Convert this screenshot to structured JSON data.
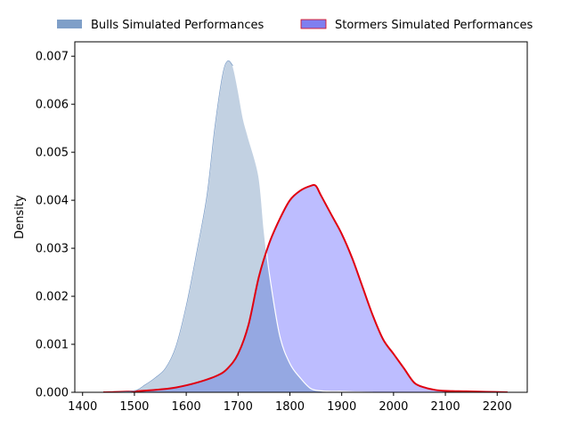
{
  "chart_data": {
    "type": "area",
    "title": "",
    "xlabel": "",
    "ylabel": "Density",
    "xlim": [
      1385,
      2258
    ],
    "ylim": [
      0,
      0.0073
    ],
    "xticks": [
      1400,
      1500,
      1600,
      1700,
      1800,
      1900,
      2000,
      2100,
      2200
    ],
    "yticks": [
      0.0,
      0.001,
      0.002,
      0.003,
      0.004,
      0.005,
      0.006,
      0.007
    ],
    "ytick_labels": [
      "0.000",
      "0.001",
      "0.002",
      "0.003",
      "0.004",
      "0.005",
      "0.006",
      "0.007"
    ],
    "legend_position": "top",
    "grid": false,
    "series": [
      {
        "name": "Bulls Simulated Performances",
        "fill": "#c2d1e2",
        "legend_color": "#7f9fc8",
        "line": "#ffffff",
        "x": [
          1460,
          1500,
          1520,
          1540,
          1560,
          1580,
          1600,
          1620,
          1640,
          1655,
          1670,
          1680,
          1690,
          1700,
          1710,
          1720,
          1740,
          1750,
          1760,
          1780,
          1800,
          1820,
          1840,
          1860,
          1880,
          1900,
          1920,
          1940,
          1960
        ],
        "y": [
          0.0,
          3e-05,
          0.00015,
          0.0003,
          0.0005,
          0.00095,
          0.0018,
          0.0029,
          0.0041,
          0.0055,
          0.0066,
          0.0069,
          0.0068,
          0.0063,
          0.0057,
          0.0053,
          0.0045,
          0.0034,
          0.0025,
          0.0012,
          0.0006,
          0.0003,
          8e-05,
          3e-05,
          2e-05,
          2e-05,
          1e-05,
          5e-06,
          0.0
        ]
      },
      {
        "name": "Stormers Simulated Performances",
        "fill": "#bdbdff",
        "legend_color": "#7f7ff0",
        "line": "#e00010",
        "x": [
          1440,
          1500,
          1550,
          1580,
          1620,
          1660,
          1680,
          1700,
          1720,
          1740,
          1760,
          1780,
          1800,
          1820,
          1840,
          1850,
          1860,
          1880,
          1900,
          1920,
          1940,
          1960,
          1980,
          2000,
          2020,
          2040,
          2060,
          2080,
          2100,
          2140,
          2180,
          2220
        ],
        "y": [
          0.0,
          2e-05,
          6e-05,
          0.0001,
          0.0002,
          0.00035,
          0.0005,
          0.0008,
          0.0014,
          0.0024,
          0.0031,
          0.0036,
          0.004,
          0.0042,
          0.0043,
          0.0043,
          0.0041,
          0.0037,
          0.0033,
          0.0028,
          0.0022,
          0.0016,
          0.0011,
          0.0008,
          0.0005,
          0.0002,
          0.0001,
          5e-05,
          3e-05,
          2e-05,
          1e-05,
          0.0
        ]
      }
    ],
    "overlap_color": "#95a8e2"
  }
}
